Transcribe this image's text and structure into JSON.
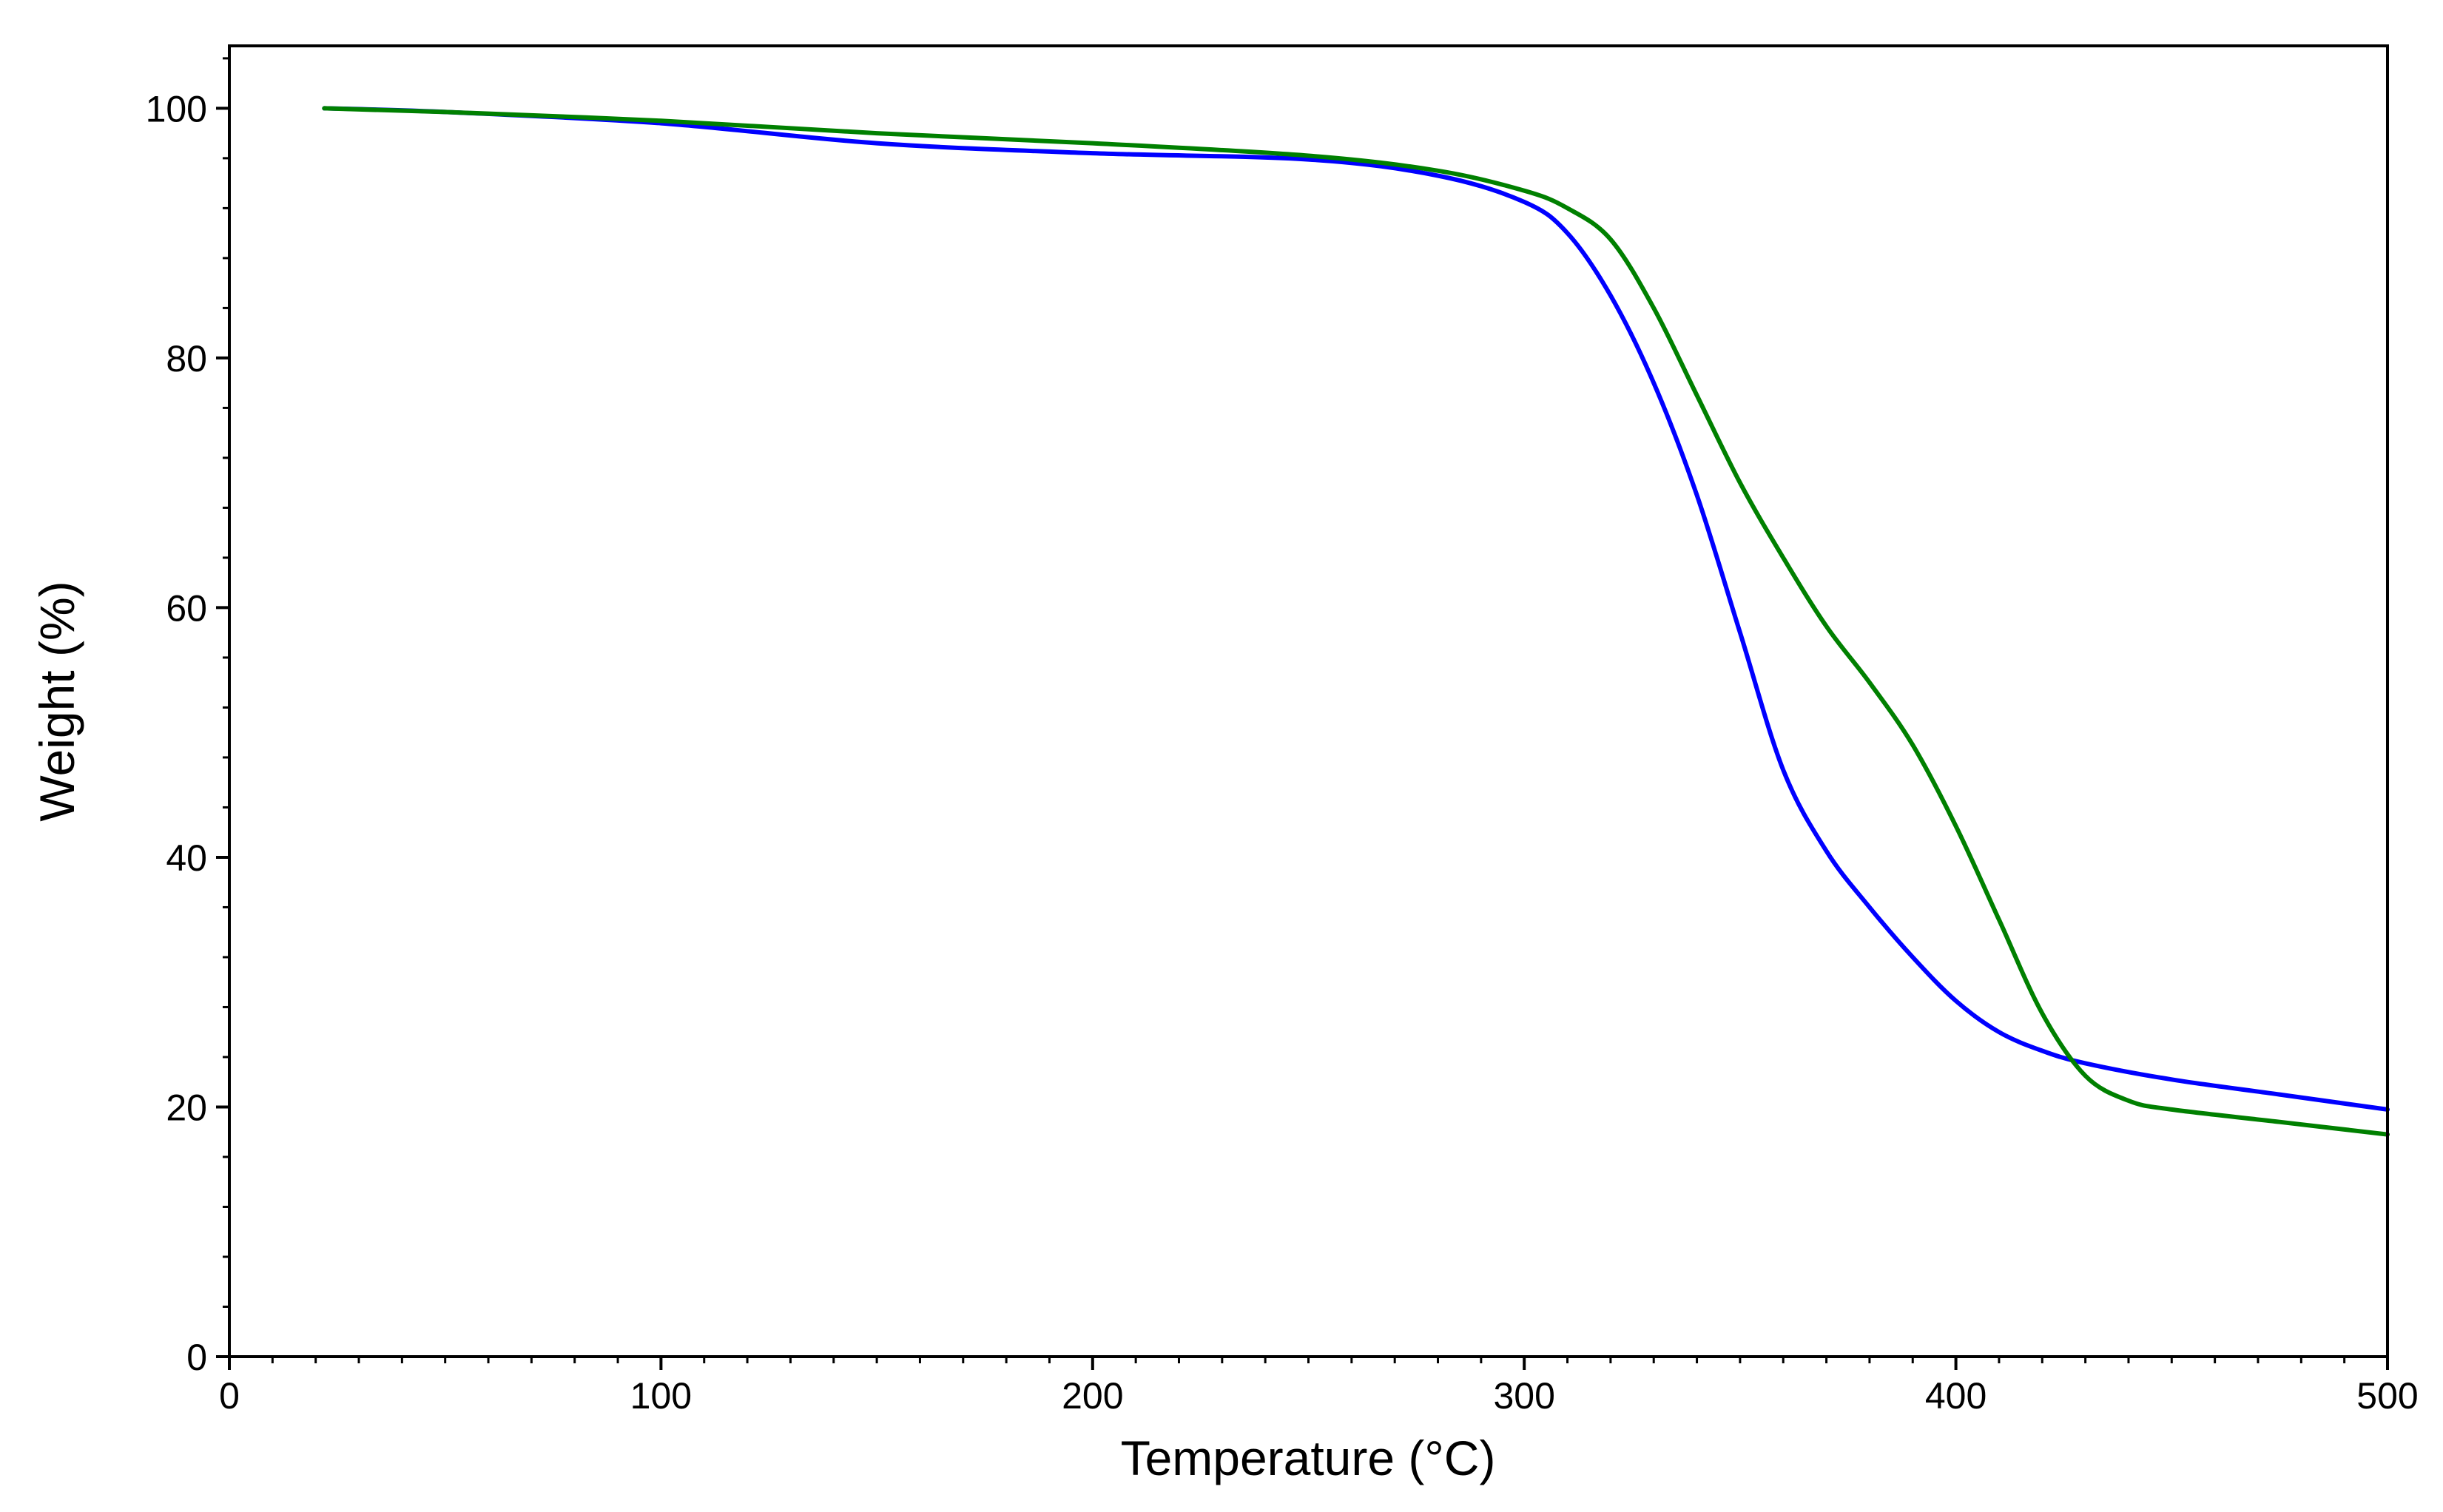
{
  "chart_data": {
    "type": "line",
    "title": "",
    "xlabel": "Temperature (°C)",
    "ylabel": "Weight (%)",
    "xlim": [
      0,
      500
    ],
    "ylim": [
      0,
      105
    ],
    "xticks": [
      0,
      100,
      200,
      300,
      400,
      500
    ],
    "yticks": [
      0,
      20,
      40,
      60,
      80,
      100
    ],
    "grid": false,
    "legend": "none",
    "series": [
      {
        "name": "blue curve",
        "color": "#0000ff",
        "x": [
          22,
          50,
          100,
          150,
          200,
          250,
          280,
          300,
          310,
          320,
          330,
          340,
          350,
          360,
          370,
          380,
          390,
          400,
          410,
          420,
          430,
          450,
          475,
          500
        ],
        "y": [
          100,
          99.7,
          98.8,
          97.2,
          96.4,
          95.9,
          94.6,
          92.5,
          90,
          85,
          78,
          69,
          58,
          47,
          40.5,
          36,
          32,
          28.5,
          26,
          24.5,
          23.5,
          22.2,
          21,
          19.8
        ]
      },
      {
        "name": "green curve",
        "color": "#008000",
        "x": [
          22,
          50,
          100,
          150,
          200,
          250,
          280,
          300,
          310,
          320,
          330,
          340,
          350,
          360,
          370,
          380,
          390,
          400,
          410,
          420,
          430,
          440,
          450,
          475,
          500
        ],
        "y": [
          100,
          99.7,
          99,
          98,
          97.2,
          96.2,
          95,
          93.4,
          92,
          89.5,
          84,
          77,
          70,
          64,
          58.5,
          54,
          49,
          42.5,
          35,
          27.5,
          22.5,
          20.5,
          19.8,
          18.8,
          17.8
        ]
      }
    ]
  }
}
